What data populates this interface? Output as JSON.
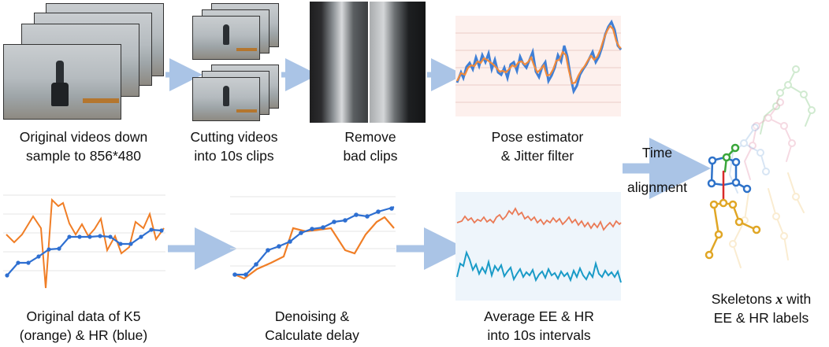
{
  "captions": {
    "original_videos": [
      "Original videos down",
      "sample to 856*480"
    ],
    "cutting": [
      "Cutting videos",
      "into 10s clips"
    ],
    "remove": [
      "Remove",
      "bad clips"
    ],
    "pose": [
      "Pose estimator",
      "& Jitter filter"
    ],
    "time_alignment": [
      "Time",
      "alignment"
    ],
    "original_data": [
      "Original data of K5",
      "(orange) & HR (blue)"
    ],
    "denoising": [
      "Denoising &",
      "Calculate delay"
    ],
    "average": [
      "Average EE & HR",
      "into 10s intervals"
    ],
    "skeletons_prefix": "Skeletons ",
    "skeletons_var": "x",
    "skeletons_suffix": " with",
    "skeletons_line2": "EE & HR labels"
  },
  "colors": {
    "orange": "#f07e26",
    "blue": "#2e6fd1",
    "teal": "#1a9bc7",
    "arrow": "#aac4e6"
  }
}
